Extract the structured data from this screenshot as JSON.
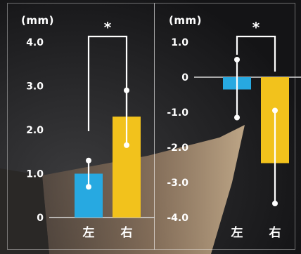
{
  "chart_data": [
    {
      "type": "bar",
      "unit": "(mm)",
      "categories": [
        "左",
        "右"
      ],
      "values": [
        1.0,
        2.3
      ],
      "errors": [
        {
          "low": 0.7,
          "high": 1.3
        },
        {
          "low": 1.65,
          "high": 2.9
        }
      ],
      "ylim": [
        0,
        4.0
      ],
      "yticks": [
        "4.0",
        "3.0",
        "2.0",
        "1.0",
        "0"
      ],
      "ytick_values": [
        4.0,
        3.0,
        2.0,
        1.0,
        0
      ],
      "significance": "*",
      "colors": [
        "#27a9e1",
        "#f2c21c"
      ]
    },
    {
      "type": "bar",
      "unit": "(mm)",
      "categories": [
        "左",
        "右"
      ],
      "values": [
        -0.35,
        -2.45
      ],
      "errors": [
        {
          "low": -1.15,
          "high": 0.5
        },
        {
          "low": -3.6,
          "high": -0.95
        }
      ],
      "ylim": [
        -4.0,
        1.0
      ],
      "yticks": [
        "1.0",
        "0",
        "-1.0",
        "-2.0",
        "-3.0",
        "-4.0"
      ],
      "ytick_values": [
        1.0,
        0,
        -1.0,
        -2.0,
        -3.0,
        -4.0
      ],
      "significance": "*",
      "colors": [
        "#27a9e1",
        "#f2c21c"
      ]
    }
  ]
}
